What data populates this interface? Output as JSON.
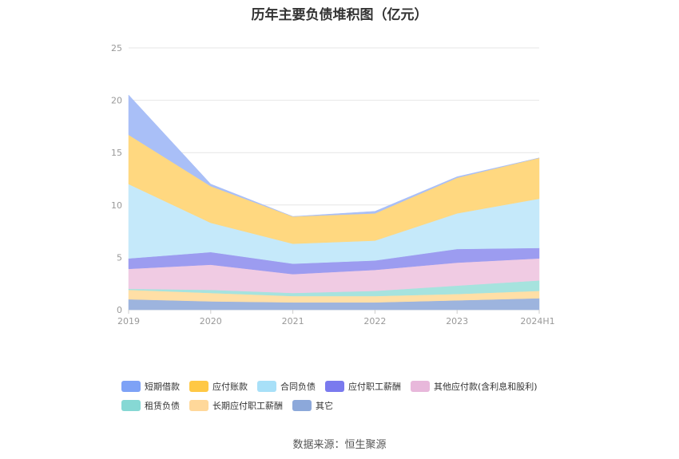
{
  "chart_data": {
    "type": "area",
    "stacked": true,
    "title": "历年主要负债堆积图（亿元）",
    "categories": [
      "2019",
      "2020",
      "2021",
      "2022",
      "2023",
      "2024H1"
    ],
    "ylim": [
      0,
      25
    ],
    "yticks": [
      "0",
      "5",
      "10",
      "15",
      "20",
      "25"
    ],
    "grid": true,
    "legend_position": "bottom",
    "series": [
      {
        "name": "其它",
        "color": "#9DB4DE",
        "values": [
          1.0,
          0.8,
          0.7,
          0.7,
          0.9,
          1.1
        ]
      },
      {
        "name": "长期应付职工薪酬",
        "color": "#FFDFA6",
        "values": [
          0.9,
          0.8,
          0.6,
          0.6,
          0.6,
          0.7
        ]
      },
      {
        "name": "租赁负债",
        "color": "#A6E3DE",
        "values": [
          0.1,
          0.3,
          0.3,
          0.5,
          0.8,
          1.0
        ]
      },
      {
        "name": "其他应付款(含利息和股利)",
        "color": "#F0CBE3",
        "values": [
          1.9,
          2.4,
          1.8,
          2.0,
          2.2,
          2.1
        ]
      },
      {
        "name": "应付职工薪酬",
        "color": "#9C9CF0",
        "values": [
          1.0,
          1.2,
          1.0,
          0.9,
          1.3,
          1.0
        ]
      },
      {
        "name": "合同负债",
        "color": "#C5E9FA",
        "values": [
          7.1,
          2.8,
          1.9,
          1.9,
          3.4,
          4.7
        ]
      },
      {
        "name": "应付账款",
        "color": "#FFD880",
        "values": [
          4.7,
          3.5,
          2.6,
          2.6,
          3.4,
          3.9
        ]
      },
      {
        "name": "短期借款",
        "color": "#A9BFF7",
        "values": [
          3.8,
          0.2,
          0.0,
          0.2,
          0.1,
          0.0
        ]
      }
    ],
    "legend": [
      {
        "name": "短期借款",
        "color": "#7EA2F6"
      },
      {
        "name": "应付账款",
        "color": "#FFC845"
      },
      {
        "name": "合同负债",
        "color": "#A8E0F8"
      },
      {
        "name": "应付职工薪酬",
        "color": "#7A7AEE"
      },
      {
        "name": "其他应付款(含利息和股利)",
        "color": "#E8B8DB"
      },
      {
        "name": "租赁负债",
        "color": "#86D8D4"
      },
      {
        "name": "长期应付职工薪酬",
        "color": "#FFD89A"
      },
      {
        "name": "其它",
        "color": "#8CA8DA"
      }
    ]
  },
  "footer": {
    "source": "数据来源：恒生聚源"
  }
}
